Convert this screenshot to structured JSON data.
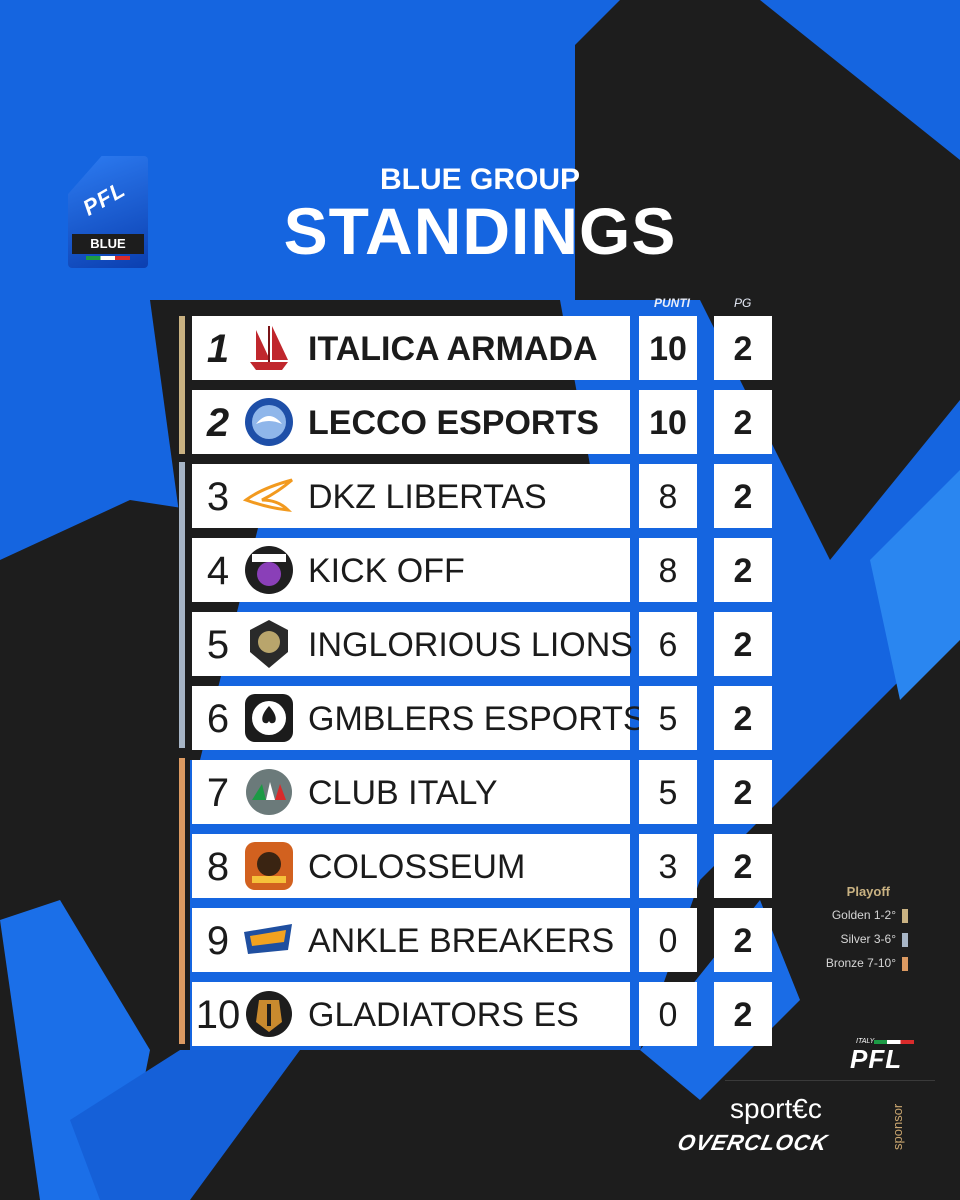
{
  "badge": {
    "logo": "PFL",
    "strip": "BLUE"
  },
  "header": {
    "subtitle": "BLUE GROUP",
    "title": "STANDINGS"
  },
  "columns": {
    "points": "PUNTI",
    "played": "PG"
  },
  "rows": [
    {
      "rank": "1",
      "team": "ITALICA ARMADA",
      "points": "10",
      "played": "2",
      "logo_icon": "ship-logo-icon",
      "group": "golden"
    },
    {
      "rank": "2",
      "team": "LECCO ESPORTS",
      "points": "10",
      "played": "2",
      "logo_icon": "eagle-logo-icon",
      "group": "golden"
    },
    {
      "rank": "3",
      "team": "DKZ LIBERTAS",
      "points": "8",
      "played": "2",
      "logo_icon": "wing-logo-icon",
      "group": "silver"
    },
    {
      "rank": "4",
      "team": "KICK OFF",
      "points": "8",
      "played": "2",
      "logo_icon": "kickoff-logo-icon",
      "group": "silver"
    },
    {
      "rank": "5",
      "team": "INGLORIOUS LIONS",
      "points": "6",
      "played": "2",
      "logo_icon": "lion-logo-icon",
      "group": "silver"
    },
    {
      "rank": "6",
      "team": "GMBLERS ESPORTS",
      "points": "5",
      "played": "2",
      "logo_icon": "spade-logo-icon",
      "group": "silver"
    },
    {
      "rank": "7",
      "team": "CLUB ITALY",
      "points": "5",
      "played": "2",
      "logo_icon": "club-italy-logo-icon",
      "group": "bronze"
    },
    {
      "rank": "8",
      "team": "COLOSSEUM",
      "points": "3",
      "played": "2",
      "logo_icon": "colosseum-logo-icon",
      "group": "bronze"
    },
    {
      "rank": "9",
      "team": "ANKLE BREAKERS",
      "points": "0",
      "played": "2",
      "logo_icon": "ankle-breakers-logo-icon",
      "group": "bronze"
    },
    {
      "rank": "10",
      "team": "GLADIATORS ES",
      "points": "0",
      "played": "2",
      "logo_icon": "gladiator-logo-icon",
      "group": "bronze"
    }
  ],
  "legend": {
    "title": "Playoff",
    "items": [
      {
        "label": "Golden 1-2°",
        "color": "#c9b282"
      },
      {
        "label": "Silver 3-6°",
        "color": "#a7b5c6"
      },
      {
        "label": "Bronze 7-10°",
        "color": "#dc9a62"
      }
    ]
  },
  "footer": {
    "pfl_italy": "ITALY",
    "pfl_logo": "PFL",
    "sponsor_label": "sponsor",
    "sponsors": [
      "sport€c",
      "OVERCLOCK"
    ]
  },
  "colors": {
    "background_blue": "#1565e0",
    "dark": "#1d1d1d",
    "white": "#ffffff"
  }
}
